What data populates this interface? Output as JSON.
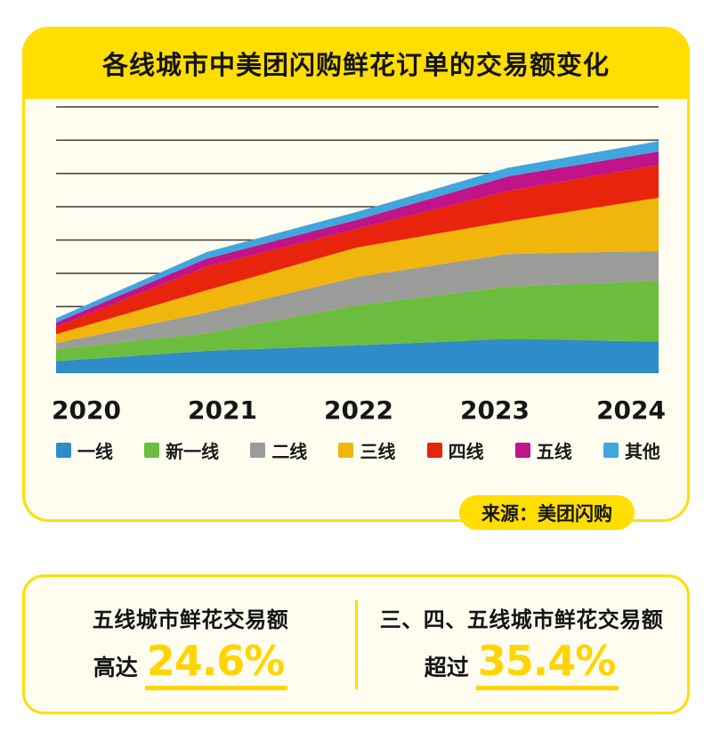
{
  "header": {
    "title": "各线城市中美团闪购鲜花订单的交易额变化"
  },
  "source_badge": {
    "label": "来源：美团闪购"
  },
  "theme": {
    "accent_yellow": "#FFDE00",
    "card_background": "#FFFDF0",
    "stat_number_yellow": "#FFD400",
    "gridline_color": "#3C3C36"
  },
  "chart_data": {
    "type": "area",
    "stacked": true,
    "title": "各线城市中美团闪购鲜花订单的交易额变化",
    "source": "来源：美团闪购",
    "x": [
      2020,
      2021,
      2022,
      2023,
      2024
    ],
    "x_labels": [
      "2020",
      "2021",
      "2022",
      "2023",
      "2024"
    ],
    "ylabel": "",
    "ylim": [
      0,
      8
    ],
    "gridlines": 8,
    "grid": true,
    "legend_position": "bottom",
    "note_values_unit": "estimated gridline units read from plot",
    "series": [
      {
        "name": "一线",
        "color": "#2E8CC9",
        "values": [
          0.36,
          0.67,
          0.84,
          1.02,
          0.95
        ]
      },
      {
        "name": "新一线",
        "color": "#6CBC3F",
        "values": [
          0.36,
          0.53,
          1.2,
          1.58,
          1.83
        ]
      },
      {
        "name": "二线",
        "color": "#9B9B99",
        "values": [
          0.18,
          0.62,
          0.85,
          0.98,
          0.89
        ]
      },
      {
        "name": "三线",
        "color": "#F0B60B",
        "values": [
          0.27,
          0.67,
          0.89,
          0.98,
          1.6
        ]
      },
      {
        "name": "四线",
        "color": "#E8240D",
        "values": [
          0.22,
          0.71,
          0.56,
          0.91,
          0.99
        ]
      },
      {
        "name": "五线",
        "color": "#C1138A",
        "values": [
          0.13,
          0.24,
          0.27,
          0.44,
          0.4
        ]
      },
      {
        "name": "其他",
        "color": "#41A5DE",
        "values": [
          0.13,
          0.2,
          0.24,
          0.26,
          0.31
        ]
      }
    ],
    "totals_estimated": [
      1.65,
      3.64,
      4.85,
      6.17,
      6.97
    ]
  },
  "stats": {
    "left": {
      "heading": "五线城市鲜花交易额",
      "prefix": "高达",
      "value": "24.6%"
    },
    "right": {
      "heading": "三、四、五线城市鲜花交易额",
      "prefix": "超过",
      "value": "35.4%"
    }
  }
}
